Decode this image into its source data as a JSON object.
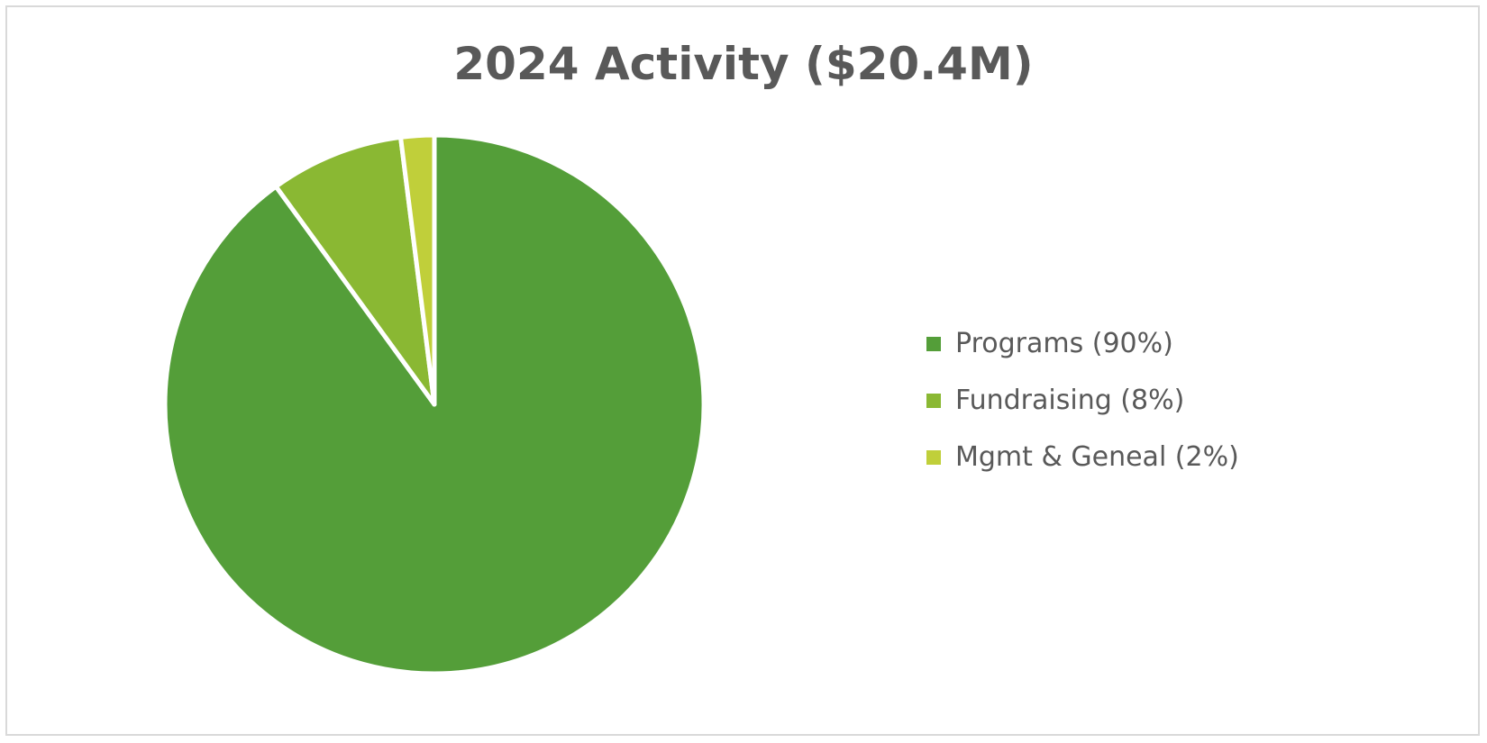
{
  "chart_data": {
    "type": "pie",
    "title": "2024 Activity ($20.4M)",
    "categories": [
      "Programs",
      "Fundraising",
      "Mgmt & Geneal"
    ],
    "values": [
      90,
      8,
      2
    ],
    "legend_labels": [
      "Programs (90%)",
      "Fundraising (8%)",
      "Mgmt & Geneal (2%)"
    ],
    "colors": [
      "#549e39",
      "#8ab833",
      "#c0cf3a"
    ],
    "legend_position": "right",
    "start_angle": "top, clockwise"
  }
}
